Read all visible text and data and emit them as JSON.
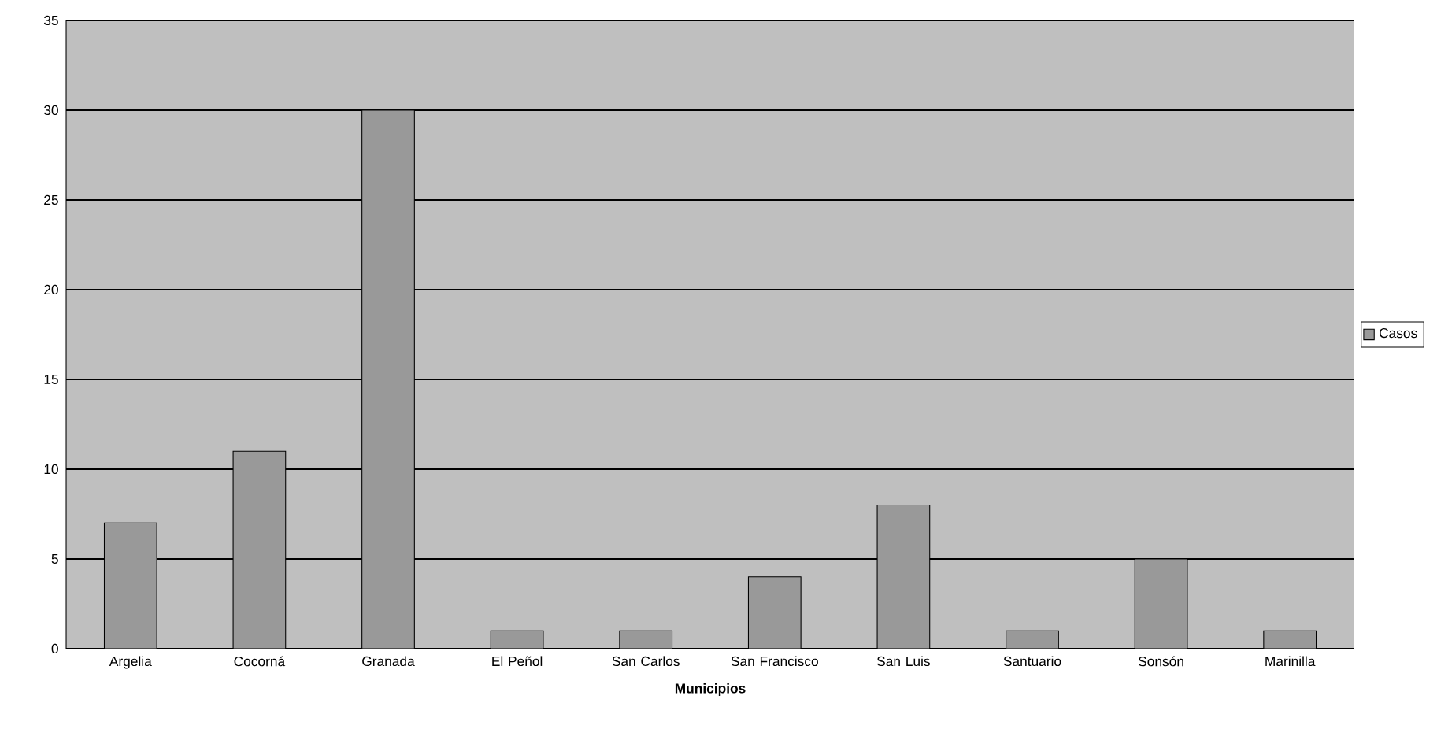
{
  "chart_data": {
    "type": "bar",
    "xlabel": "Municipios",
    "categories": [
      "Argelia",
      "Cocorná",
      "Granada",
      "El Peñol",
      "San Carlos",
      "San Francisco",
      "San Luis",
      "Santuario",
      "Sonsón",
      "Marinilla"
    ],
    "series": [
      {
        "name": "Casos",
        "color": "#999999",
        "values": [
          7,
          11,
          30,
          1,
          1,
          4,
          8,
          1,
          5,
          1
        ]
      }
    ],
    "ylim": [
      0,
      35
    ],
    "yticks": [
      0,
      5,
      10,
      15,
      20,
      25,
      30,
      35
    ],
    "grid": "y",
    "legend": "right"
  }
}
